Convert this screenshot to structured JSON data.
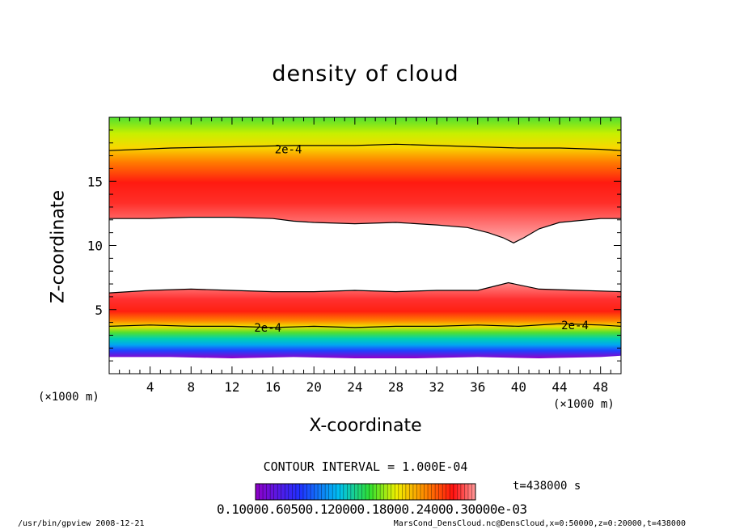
{
  "chart_data": {
    "type": "contour",
    "title": "density of cloud",
    "xlabel": "X-coordinate",
    "ylabel": "Z-coordinate",
    "x_unit": "(×1000 m)",
    "x_unit_right": "(×1000 m)",
    "xlim": [
      0,
      50
    ],
    "ylim": [
      0,
      20
    ],
    "x_ticks": [
      4,
      8,
      12,
      16,
      20,
      24,
      28,
      32,
      36,
      40,
      44,
      48
    ],
    "y_ticks": [
      5,
      10,
      15
    ],
    "contour_labels": [
      {
        "text": "2e-4",
        "x": 17.5,
        "z": 17.5
      },
      {
        "text": "2e-4",
        "x": 15.5,
        "z": 3.6
      },
      {
        "text": "2e-4",
        "x": 45.5,
        "z": 3.8
      }
    ],
    "upper_cloud_base": [
      [
        0,
        12.1
      ],
      [
        4,
        12.1
      ],
      [
        8,
        12.2
      ],
      [
        12,
        12.2
      ],
      [
        16,
        12.1
      ],
      [
        18,
        11.9
      ],
      [
        20,
        11.8
      ],
      [
        24,
        11.7
      ],
      [
        28,
        11.8
      ],
      [
        32,
        11.6
      ],
      [
        35,
        11.4
      ],
      [
        37,
        11.0
      ],
      [
        38.5,
        10.6
      ],
      [
        39.5,
        10.2
      ],
      [
        40.5,
        10.6
      ],
      [
        42,
        11.3
      ],
      [
        44,
        11.8
      ],
      [
        48,
        12.1
      ],
      [
        50,
        12.1
      ]
    ],
    "upper_contour_2e4": [
      [
        0,
        17.4
      ],
      [
        6,
        17.6
      ],
      [
        12,
        17.7
      ],
      [
        18,
        17.8
      ],
      [
        24,
        17.8
      ],
      [
        28,
        17.9
      ],
      [
        32,
        17.8
      ],
      [
        36,
        17.7
      ],
      [
        40,
        17.6
      ],
      [
        44,
        17.6
      ],
      [
        48,
        17.5
      ],
      [
        50,
        17.4
      ]
    ],
    "lower_cloud_top": [
      [
        0,
        6.3
      ],
      [
        4,
        6.5
      ],
      [
        8,
        6.6
      ],
      [
        12,
        6.5
      ],
      [
        16,
        6.4
      ],
      [
        20,
        6.4
      ],
      [
        24,
        6.5
      ],
      [
        28,
        6.4
      ],
      [
        32,
        6.5
      ],
      [
        36,
        6.5
      ],
      [
        39,
        7.1
      ],
      [
        42,
        6.6
      ],
      [
        46,
        6.5
      ],
      [
        50,
        6.4
      ]
    ],
    "lower_contour_2e4": [
      [
        0,
        3.7
      ],
      [
        4,
        3.8
      ],
      [
        8,
        3.7
      ],
      [
        12,
        3.7
      ],
      [
        16,
        3.6
      ],
      [
        20,
        3.7
      ],
      [
        24,
        3.6
      ],
      [
        28,
        3.7
      ],
      [
        32,
        3.7
      ],
      [
        36,
        3.8
      ],
      [
        40,
        3.7
      ],
      [
        44,
        3.9
      ],
      [
        48,
        3.8
      ],
      [
        50,
        3.7
      ]
    ],
    "lower_cloud_base": [
      [
        0,
        1.3
      ],
      [
        6,
        1.3
      ],
      [
        12,
        1.2
      ],
      [
        18,
        1.3
      ],
      [
        24,
        1.2
      ],
      [
        30,
        1.2
      ],
      [
        36,
        1.3
      ],
      [
        42,
        1.2
      ],
      [
        48,
        1.3
      ],
      [
        50,
        1.4
      ]
    ],
    "colorbar": {
      "tick_labels": "0.10000.60500.120000.18000.24000.30000e-03"
    },
    "colors": {
      "violet": "#9000c8",
      "blue": "#2030ff",
      "cyan": "#00c0f0",
      "green": "#30e030",
      "yellow": "#f0f000",
      "orange": "#ff8000",
      "red": "#ff1010",
      "pink": "#ff9a9a"
    }
  },
  "contour_interval": "CONTOUR INTERVAL = 1.000E-04",
  "time_label": "t=438000 s",
  "footer_left": "/usr/bin/gpview   2008-12-21",
  "footer_right": "MarsCond_DensCloud.nc@DensCloud,x=0:50000,z=0:20000,t=438000"
}
